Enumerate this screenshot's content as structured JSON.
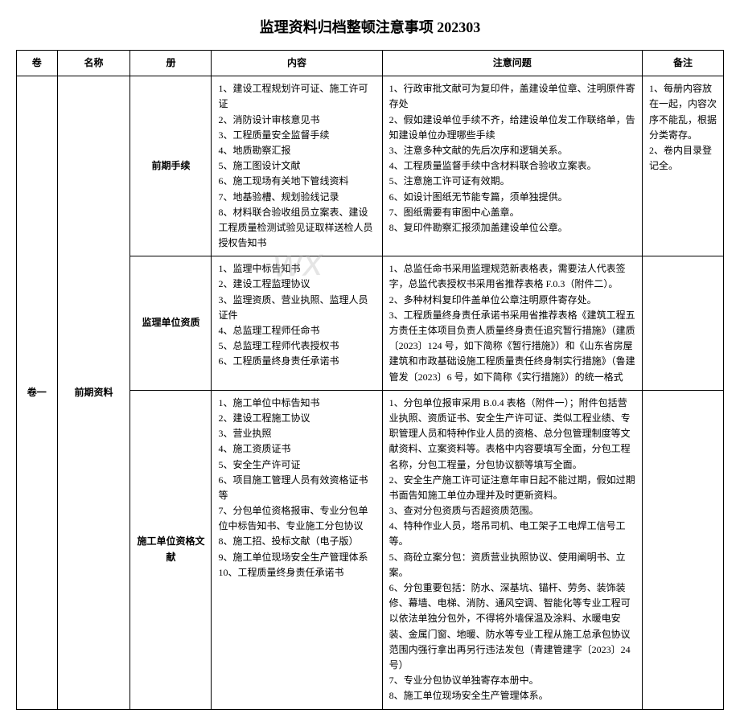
{
  "title": "监理资料归档整顿注意事项 202303",
  "watermark": "wx",
  "headers": {
    "juan": "卷",
    "name": "名称",
    "ce": "册",
    "content": "内容",
    "notice": "注意问题",
    "remark": "备注"
  },
  "juan_label": "卷一",
  "name_label": "前期资料",
  "rows": [
    {
      "ce": "前期手续",
      "content": "1、建设工程规划许可证、施工许可证\n2、消防设计审核意见书\n3、工程质量安全监督手续\n4、地质勘察汇报\n5、施工图设计文献\n6、施工现场有关地下管线资料\n7、地基验槽、规划验线记录\n8、材料联合验收组员立案表、建设工程质量检测试验见证取样送检人员授权告知书",
      "notice": "1、行政审批文献可为复印件，盖建设单位章、注明原件寄存处\n2、假如建设单位手续不齐，给建设单位发工作联络单，告知建设单位办理哪些手续\n3、注意多种文献的先后次序和逻辑关系。\n4、工程质量监督手续中含材料联合验收立案表。\n5、注意施工许可证有效期。\n6、如设计图纸无节能专篇，须单独提供。\n7、图纸需要有审图中心盖章。\n8、复印件勘察汇报须加盖建设单位公章。",
      "remark": "1、每册内容放在一起，内容次序不能乱，根据分类寄存。\n2、卷内目录登记全。"
    },
    {
      "ce": "监理单位资质",
      "content": "1、监理中标告知书\n2、建设工程监理协议\n3、监理资质、营业执照、监理人员证件\n4、总监理工程师任命书\n5、总监理工程师代表授权书\n6、工程质量终身责任承诺书",
      "notice": "1、总监任命书采用监理规范新表格表，需要法人代表签字，总监代表授权书采用省推荐表格 F.0.3（附件二）。\n2、多种材料复印件盖单位公章注明原件寄存处。\n3、工程质量终身责任承诺书采用省推荐表格《建筑工程五方责任主体项目负责人质量终身责任追究暂行措施》（建质〔2023〕124 号，如下简称《暂行措施》）和《山东省房屋建筑和市政基础设施工程质量责任终身制实行措施》（鲁建管发〔2023〕6 号，如下简称《实行措施》）的统一格式",
      "remark": ""
    },
    {
      "ce": "施工单位资格文献",
      "content": "1、施工单位中标告知书\n2、建设工程施工协议\n3、营业执照\n4、施工资质证书\n5、安全生产许可证\n6、项目施工管理人员有效资格证书等\n7、分包单位资格报审、专业分包单位中标告知书、专业施工分包协议\n8、施工招、投标文献（电子版）\n9、施工单位现场安全生产管理体系\n10、工程质量终身责任承诺书",
      "notice": "1、分包单位报审采用 B.0.4 表格（附件一）；附件包括营业执照、资质证书、安全生产许可证、类似工程业绩、专职管理人员和特种作业人员的资格、总分包管理制度等文献资料、立案资料等。表格中内容要填写全面，分包工程名称，分包工程量，分包协议额等填写全面。\n2、安全生产施工许可证注意年审日起不能过期，假如过期书面告知施工单位办理并及时更新资料。\n3、查对分包资质与否超资质范围。\n4、特种作业人员，塔吊司机、电工架子工电焊工信号工等。\n5、商砼立案分包：资质营业执照协议、使用阐明书、立案。\n6、分包重要包括：防水、深基坑、锚杆、劳务、装饰装修、幕墙、电梯、消防、通风空调、智能化等专业工程可以依法单独分包外，不得将外墙保温及涂料、水暖电安装、金属门窗、地暖、防水等专业工程从施工总承包协议范围内强行拿出再另行违法发包（青建管建字〔2023〕24 号）\n7、专业分包协议单独寄存本册中。\n8、施工单位现场安全生产管理体系。",
      "remark": ""
    }
  ]
}
